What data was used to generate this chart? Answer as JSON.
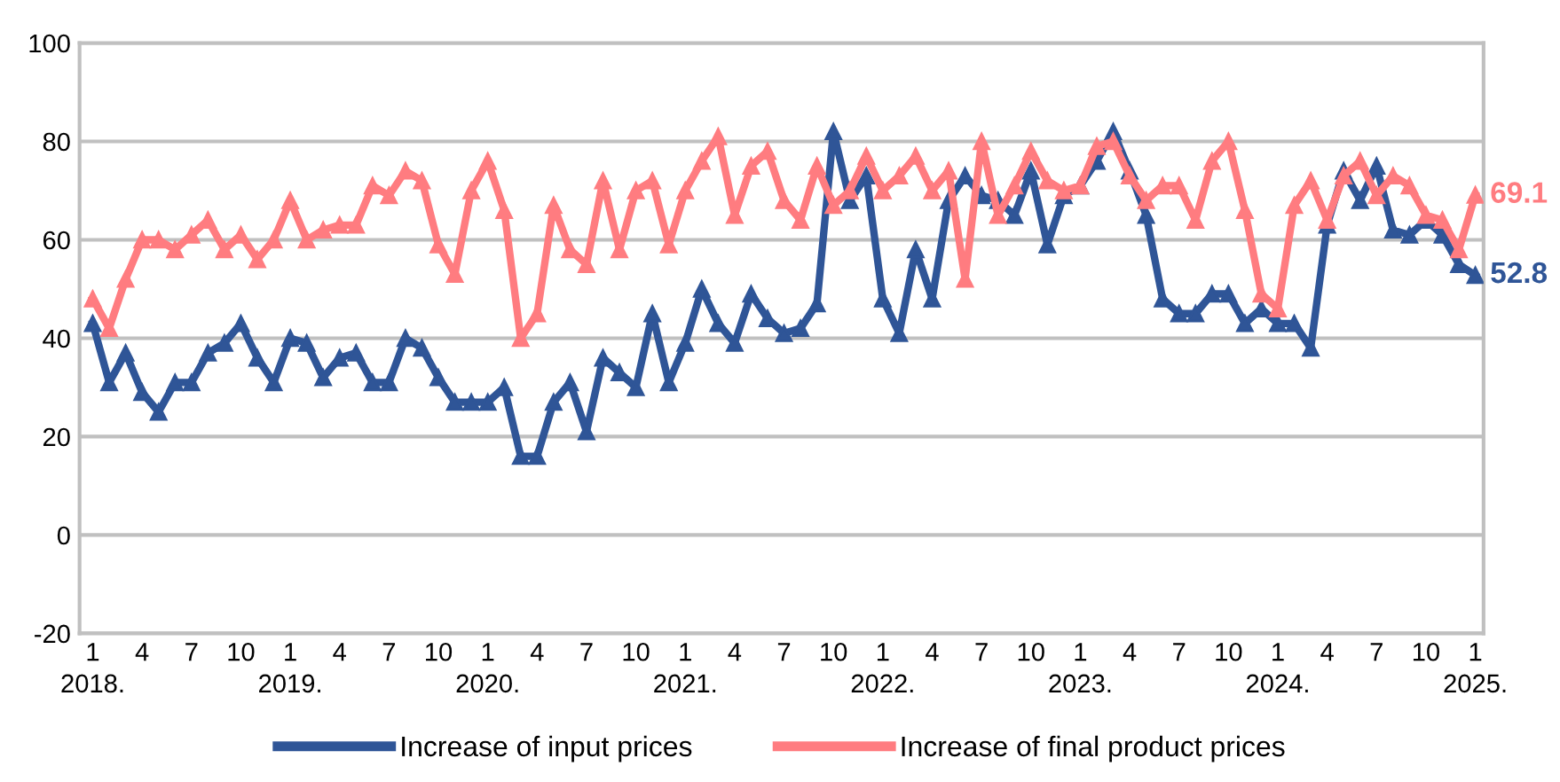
{
  "chart_data": {
    "type": "line",
    "categories": [
      "1\n2018.",
      null,
      null,
      "4",
      null,
      null,
      "7",
      null,
      null,
      "10",
      null,
      null,
      "1\n2019.",
      null,
      null,
      "4",
      null,
      null,
      "7",
      null,
      null,
      "10",
      null,
      null,
      "1\n2020.",
      null,
      null,
      "4",
      null,
      null,
      "7",
      null,
      null,
      "10",
      null,
      null,
      "1\n2021.",
      null,
      null,
      "4",
      null,
      null,
      "7",
      null,
      null,
      "10",
      null,
      null,
      "1\n2022.",
      null,
      null,
      "4",
      null,
      null,
      "7",
      null,
      null,
      "10",
      null,
      null,
      "1\n2023.",
      null,
      null,
      "4",
      null,
      null,
      "7",
      null,
      null,
      "10",
      null,
      null,
      "1\n2024.",
      null,
      null,
      "4",
      null,
      null,
      "7",
      null,
      null,
      "10",
      null,
      null,
      "1\n2025."
    ],
    "series": [
      {
        "name": "Increase of input prices",
        "color": "#2f5597",
        "values": [
          43,
          31,
          37,
          29,
          25,
          31,
          31,
          37,
          39,
          43,
          36,
          31,
          40,
          39,
          32,
          36,
          37,
          31,
          31,
          40,
          38,
          32,
          27,
          27,
          27,
          30,
          16,
          16,
          27,
          31,
          21,
          36,
          33,
          30,
          45,
          31,
          39,
          50,
          43,
          39,
          49,
          44,
          41,
          42,
          47,
          82,
          68,
          73,
          48,
          41,
          58,
          48,
          68,
          73,
          69,
          68,
          65,
          74,
          59,
          69,
          71,
          76,
          82,
          74,
          65,
          48,
          45,
          45,
          49,
          49,
          43,
          46,
          43,
          43,
          38,
          63,
          74,
          68,
          75,
          62,
          61,
          64,
          61,
          55,
          52.8
        ],
        "value_labels": [
          null,
          null,
          null,
          null,
          null,
          null,
          null,
          null,
          null,
          null,
          null,
          null,
          null,
          null,
          null,
          null,
          null,
          null,
          null,
          null,
          null,
          null,
          null,
          null,
          null,
          null,
          null,
          null,
          null,
          null,
          null,
          null,
          null,
          null,
          null,
          null,
          null,
          null,
          null,
          null,
          null,
          null,
          null,
          null,
          null,
          null,
          null,
          null,
          null,
          null,
          null,
          null,
          null,
          null,
          null,
          null,
          null,
          null,
          null,
          null,
          null,
          null,
          null,
          null,
          null,
          null,
          null,
          null,
          null,
          null,
          null,
          null,
          null,
          null,
          null,
          null,
          null,
          null,
          null,
          null,
          null,
          null,
          null,
          null,
          "52.8"
        ]
      },
      {
        "name": "Increase of final product prices",
        "color": "#ff7c80",
        "values": [
          48,
          42,
          52,
          60,
          60,
          58,
          61,
          64,
          58,
          61,
          56,
          60,
          68,
          60,
          62,
          63,
          63,
          71,
          69,
          74,
          72,
          59,
          53,
          70,
          76,
          66,
          40,
          45,
          67,
          58,
          55,
          72,
          58,
          70,
          72,
          59,
          70,
          76,
          81,
          65,
          75,
          78,
          68,
          64,
          75,
          67,
          70,
          77,
          70,
          73,
          77,
          70,
          74,
          52,
          80,
          65,
          71,
          78,
          72,
          70,
          71,
          79,
          80,
          73,
          68,
          71,
          71,
          64,
          76,
          80,
          66,
          49,
          46,
          67,
          72,
          64,
          73,
          76,
          69,
          73,
          71,
          65,
          64,
          58,
          69.1
        ],
        "value_labels": [
          null,
          null,
          null,
          null,
          null,
          null,
          null,
          null,
          null,
          null,
          null,
          null,
          null,
          null,
          null,
          null,
          null,
          null,
          null,
          null,
          null,
          null,
          null,
          null,
          null,
          null,
          null,
          null,
          null,
          null,
          null,
          null,
          null,
          null,
          null,
          null,
          null,
          null,
          null,
          null,
          null,
          null,
          null,
          null,
          null,
          null,
          null,
          null,
          null,
          null,
          null,
          null,
          null,
          null,
          null,
          null,
          null,
          null,
          null,
          null,
          null,
          null,
          null,
          null,
          null,
          null,
          null,
          null,
          null,
          null,
          null,
          null,
          null,
          null,
          null,
          null,
          null,
          null,
          null,
          null,
          null,
          null,
          null,
          null,
          "69.1"
        ]
      }
    ],
    "ylim": [
      -20,
      100
    ],
    "yticks": [
      -20,
      0,
      20,
      40,
      60,
      80,
      100
    ],
    "grid": "y",
    "legend": "bottom",
    "marker": "triangle",
    "line_style": "solid"
  }
}
